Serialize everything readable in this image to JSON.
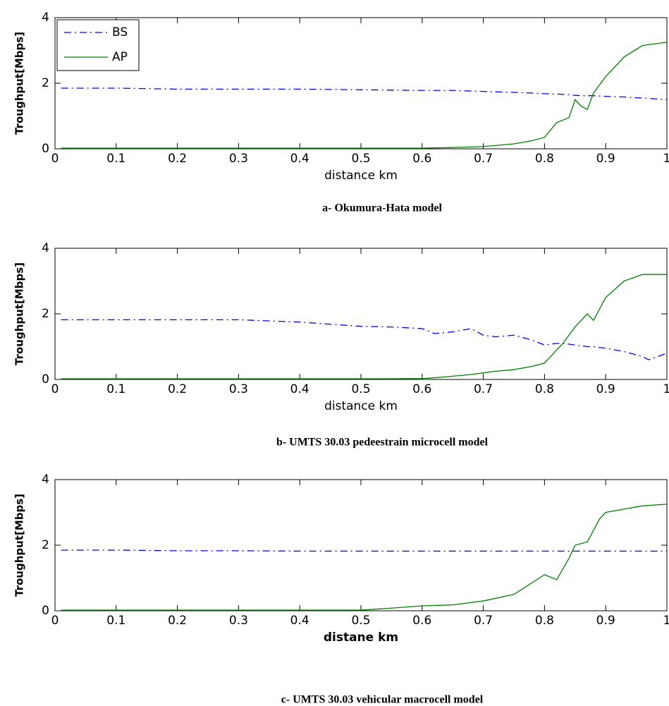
{
  "chart_data": [
    {
      "type": "line",
      "caption": "a- Okumura-Hata model",
      "xlabel": "distance km",
      "ylabel": "Troughput[Mbps]",
      "x": [
        0.01,
        0.1,
        0.2,
        0.3,
        0.4,
        0.5,
        0.6,
        0.65,
        0.7,
        0.75,
        0.78,
        0.8,
        0.82,
        0.84,
        0.85,
        0.86,
        0.87,
        0.88,
        0.9,
        0.93,
        0.96,
        1.0
      ],
      "series": [
        {
          "name": "BS",
          "color": "#0000ff",
          "dash": "dashdot",
          "values": [
            1.85,
            1.85,
            1.82,
            1.82,
            1.82,
            1.8,
            1.78,
            1.78,
            1.75,
            1.72,
            1.7,
            1.68,
            1.67,
            1.65,
            1.63,
            1.62,
            1.62,
            1.62,
            1.6,
            1.58,
            1.55,
            1.5
          ]
        },
        {
          "name": "AP",
          "color": "#008000",
          "dash": "solid",
          "values": [
            0.02,
            0.02,
            0.02,
            0.02,
            0.02,
            0.02,
            0.02,
            0.04,
            0.07,
            0.15,
            0.25,
            0.35,
            0.8,
            0.95,
            1.5,
            1.3,
            1.2,
            1.7,
            2.2,
            2.8,
            3.15,
            3.25
          ]
        }
      ],
      "xlim": [
        0,
        1
      ],
      "xticks": [
        0,
        0.1,
        0.2,
        0.3,
        0.4,
        0.5,
        0.6,
        0.7,
        0.8,
        0.9,
        1
      ],
      "ylim": [
        0,
        4
      ],
      "yticks": [
        0,
        2,
        4
      ],
      "grid": false,
      "legend": "upper left",
      "xlabel_bold": false
    },
    {
      "type": "line",
      "caption": "b- UMTS 30.03 pedeestrain  microcell model",
      "xlabel": "distance km",
      "ylabel": "Troughput[Mbps]",
      "x": [
        0.01,
        0.1,
        0.2,
        0.3,
        0.4,
        0.5,
        0.55,
        0.6,
        0.62,
        0.65,
        0.68,
        0.7,
        0.72,
        0.75,
        0.78,
        0.8,
        0.82,
        0.83,
        0.85,
        0.87,
        0.88,
        0.9,
        0.93,
        0.96,
        0.97,
        1.0
      ],
      "series": [
        {
          "color": "#0000ff",
          "dash": "dashdot",
          "values": [
            1.82,
            1.82,
            1.82,
            1.82,
            1.75,
            1.62,
            1.6,
            1.55,
            1.4,
            1.45,
            1.55,
            1.35,
            1.3,
            1.35,
            1.2,
            1.05,
            1.1,
            1.1,
            1.05,
            1.0,
            1.0,
            0.95,
            0.85,
            0.7,
            0.6,
            0.8
          ]
        },
        {
          "color": "#008000",
          "dash": "solid",
          "values": [
            0.02,
            0.02,
            0.02,
            0.02,
            0.02,
            0.02,
            0.02,
            0.03,
            0.05,
            0.1,
            0.15,
            0.2,
            0.25,
            0.3,
            0.4,
            0.5,
            0.9,
            1.1,
            1.6,
            2.0,
            1.8,
            2.5,
            3.0,
            3.2,
            3.2,
            3.2
          ]
        }
      ],
      "xlim": [
        0,
        1
      ],
      "xticks": [
        0,
        0.1,
        0.2,
        0.3,
        0.4,
        0.5,
        0.6,
        0.7,
        0.8,
        0.9,
        1
      ],
      "ylim": [
        0,
        4
      ],
      "yticks": [
        0,
        2,
        4
      ],
      "grid": false,
      "xlabel_bold": false
    },
    {
      "type": "line",
      "caption": "c- UMTS 30.03 vehicular macrocell model",
      "xlabel": "distane km",
      "ylabel": "Troughput[Mbps]",
      "x": [
        0.01,
        0.1,
        0.2,
        0.3,
        0.4,
        0.5,
        0.55,
        0.6,
        0.65,
        0.7,
        0.75,
        0.8,
        0.82,
        0.84,
        0.85,
        0.87,
        0.89,
        0.9,
        0.93,
        0.96,
        1.0
      ],
      "series": [
        {
          "color": "#0000ff",
          "dash": "dashdot",
          "values": [
            1.85,
            1.85,
            1.83,
            1.83,
            1.82,
            1.82,
            1.82,
            1.82,
            1.82,
            1.82,
            1.82,
            1.82,
            1.82,
            1.82,
            1.82,
            1.82,
            1.82,
            1.82,
            1.82,
            1.82,
            1.82
          ]
        },
        {
          "color": "#008000",
          "dash": "solid",
          "values": [
            0.02,
            0.02,
            0.02,
            0.02,
            0.02,
            0.02,
            0.08,
            0.15,
            0.18,
            0.3,
            0.5,
            1.1,
            0.95,
            1.6,
            2.0,
            2.1,
            2.8,
            3.0,
            3.1,
            3.2,
            3.25
          ]
        }
      ],
      "xlim": [
        0,
        1
      ],
      "xticks": [
        0,
        0.1,
        0.2,
        0.3,
        0.4,
        0.5,
        0.6,
        0.7,
        0.8,
        0.9,
        1
      ],
      "ylim": [
        0,
        4
      ],
      "yticks": [
        0,
        2,
        4
      ],
      "grid": false,
      "xlabel_bold": true
    }
  ]
}
